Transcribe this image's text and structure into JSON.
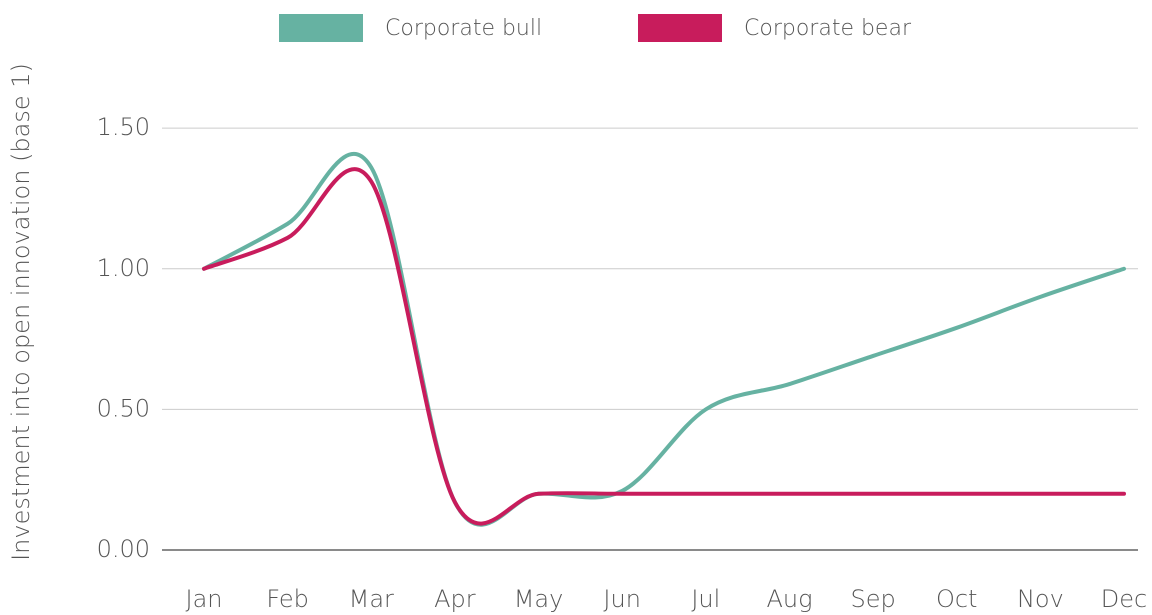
{
  "chart_data": {
    "type": "line",
    "y_label": "Investment into open innovation (base 1)",
    "categories": [
      "Jan",
      "Feb",
      "Mar",
      "Apr",
      "May",
      "Jun",
      "Jul",
      "Aug",
      "Sep",
      "Oct",
      "Nov",
      "Dec"
    ],
    "series": [
      {
        "name": "Corporate bull",
        "color": "#66b2a2",
        "values": [
          1.0,
          1.16,
          1.36,
          0.17,
          0.2,
          0.21,
          0.5,
          0.59,
          0.69,
          0.79,
          0.9,
          1.0
        ]
      },
      {
        "name": "Corporate bear",
        "color": "#c81c5c",
        "values": [
          1.0,
          1.11,
          1.31,
          0.17,
          0.2,
          0.2,
          0.2,
          0.2,
          0.2,
          0.2,
          0.2,
          0.2
        ]
      }
    ],
    "ylim": [
      0,
      1.6
    ],
    "yticks": [
      {
        "value": 0,
        "label": "0.00"
      },
      {
        "value": 0.5,
        "label": "0.50"
      },
      {
        "value": 1,
        "label": "1.00"
      },
      {
        "value": 1.5,
        "label": "1.50"
      }
    ],
    "grid": true,
    "legend": "top"
  }
}
